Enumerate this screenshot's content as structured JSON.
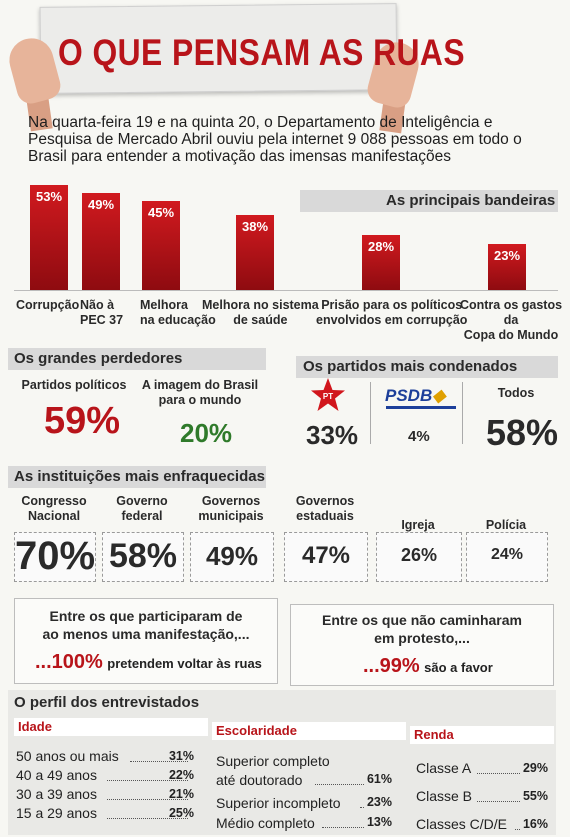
{
  "title": "O QUE PENSAM AS RUAS",
  "intro": "Na quarta-feira 19 e na quinta 20, o Departamento de Inteligência e Pesquisa de Mercado Abril ouviu pela internet 9 088 pessoas em todo o Brasil para entender a motivação das imensas manifestações",
  "bandeiras": {
    "heading": "As principais bandeiras",
    "chart_data": {
      "type": "bar",
      "title": "As principais bandeiras",
      "categories": [
        "Corrupção",
        "Não à PEC 37",
        "Melhora na educação",
        "Melhora no sistema de saúde",
        "Prisão para os políticos envolvidos em corrupção",
        "Contra os gastos da Copa do Mundo"
      ],
      "values": [
        53,
        49,
        45,
        38,
        28,
        23
      ],
      "value_labels": [
        "53%",
        "49%",
        "45%",
        "38%",
        "28%",
        "23%"
      ],
      "unit": "%",
      "ylim": [
        0,
        53
      ]
    },
    "labels": [
      [
        "Corrupção"
      ],
      [
        "Não à",
        "PEC 37"
      ],
      [
        "Melhora",
        "na educação"
      ],
      [
        "Melhora no sistema",
        "de saúde"
      ],
      [
        "Prisão para os políticos",
        "envolvidos em corrupção"
      ],
      [
        "Contra os gastos da",
        "Copa do Mundo"
      ]
    ]
  },
  "perdedores": {
    "heading": "Os grandes perdedores",
    "items": [
      {
        "label": [
          "Partidos políticos"
        ],
        "value": "59%",
        "color": "#b8141a"
      },
      {
        "label": [
          "A imagem do Brasil",
          "para o mundo"
        ],
        "value": "20%",
        "color": "#2f7a2a"
      }
    ]
  },
  "partidos": {
    "heading": "Os partidos mais condenados",
    "items": [
      {
        "logo": "PT",
        "logo_icon": "pt-star-logo",
        "value": "33%",
        "color": "#b8141a"
      },
      {
        "logo": "PSDB",
        "logo_icon": "psdb-toucan-logo",
        "value": "4%",
        "color": "#1d3f9a"
      },
      {
        "label": "Todos",
        "value": "58%"
      }
    ]
  },
  "instituicoes": {
    "heading": "As instituições mais enfraquecidas",
    "items": [
      {
        "label": [
          "Congresso",
          "Nacional"
        ],
        "value": "70%"
      },
      {
        "label": [
          "Governo",
          "federal"
        ],
        "value": "58%"
      },
      {
        "label": [
          "Governos",
          "municipais"
        ],
        "value": "49%"
      },
      {
        "label": [
          "Governos",
          "estaduais"
        ],
        "value": "47%"
      },
      {
        "label": [
          "Igreja"
        ],
        "value": "26%"
      },
      {
        "label": [
          "Polícia"
        ],
        "value": "24%"
      }
    ]
  },
  "callouts": [
    {
      "text": [
        "Entre os que participaram de",
        "ao menos uma manifestação,..."
      ],
      "value": "...100%",
      "suffix": "pretendem voltar às ruas"
    },
    {
      "text": [
        "Entre os que não caminharam",
        "em protesto,..."
      ],
      "value": "...99%",
      "suffix": "são a favor"
    }
  ],
  "perfil": {
    "heading": "O perfil dos entrevistados",
    "idade": {
      "heading": "Idade",
      "rows": [
        {
          "label": "50 anos ou mais",
          "value": "31%"
        },
        {
          "label": "40 a 49 anos",
          "value": "22%"
        },
        {
          "label": "30 a 39 anos",
          "value": "21%"
        },
        {
          "label": "15 a 29 anos",
          "value": "25%"
        }
      ]
    },
    "escolaridade": {
      "heading": "Escolaridade",
      "rows": [
        {
          "label": [
            "Superior completo",
            "até doutorado"
          ],
          "value": "61%"
        },
        {
          "label": [
            "Superior incompleto"
          ],
          "value": "23%"
        },
        {
          "label": [
            "Médio completo"
          ],
          "value": "13%"
        }
      ]
    },
    "renda": {
      "heading": "Renda",
      "rows": [
        {
          "label": "Classe A",
          "value": "29%"
        },
        {
          "label": "Classe B",
          "value": "55%"
        },
        {
          "label": "Classes C/D/E",
          "value": "16%"
        }
      ]
    }
  },
  "colors": {
    "accent": "#b8141a",
    "bar": "#c01219",
    "positive": "#2f7a2a",
    "psdb": "#1d3f9a"
  }
}
